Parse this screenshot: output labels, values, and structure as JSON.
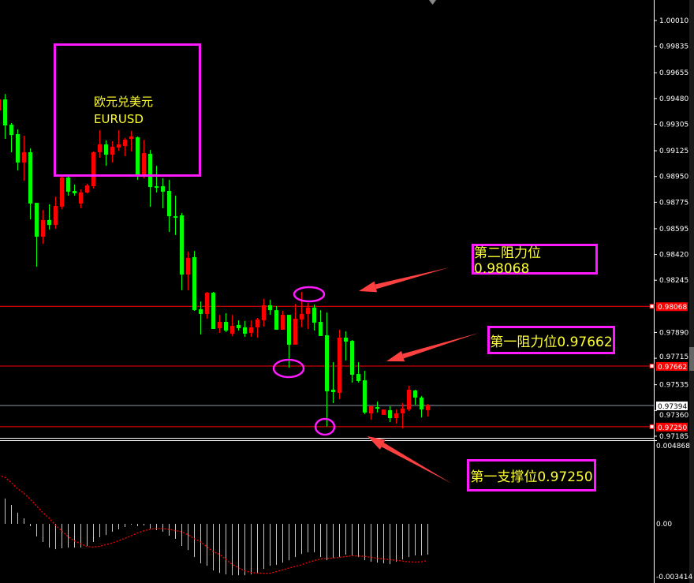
{
  "chart_data": [
    {
      "type": "candlestick",
      "symbol_label": "欧元兑美元",
      "symbol": "EURUSD",
      "colors": {
        "bullish": "#ff0000",
        "bearish": "#00ff00",
        "background": "#000000",
        "annotation": "#ff1aff",
        "annotation_text": "#ffff33"
      },
      "ylim": [
        0.9715,
        1.0006
      ],
      "y_ticks": [
        "1.00010",
        "0.99835",
        "0.99655",
        "0.99480",
        "0.99305",
        "0.99125",
        "0.98950",
        "0.98775",
        "0.98595",
        "0.98420",
        "0.98245",
        "0.97890",
        "0.97715",
        "0.97535",
        "0.97360",
        "0.97185"
      ],
      "current_price": "0.97394",
      "levels": [
        {
          "price": 0.98068,
          "label": "0.98068",
          "color": "#ff0000"
        },
        {
          "price": 0.97662,
          "label": "0.97662",
          "color": "#ff0000"
        },
        {
          "price": 0.9725,
          "label": "0.97250",
          "color": "#ff0000"
        },
        {
          "price": 0.97394,
          "label": "0.97394",
          "color": "#8a96a0"
        }
      ],
      "ohlc": [
        [
          0.99399,
          0.99506,
          0.99388,
          0.99474
        ],
        [
          0.99474,
          0.99511,
          0.99206,
          0.99297
        ],
        [
          0.99302,
          0.99313,
          0.99115,
          0.99232
        ],
        [
          0.99238,
          0.9927,
          0.98991,
          0.99045
        ],
        [
          0.99045,
          0.99227,
          0.98922,
          0.99115
        ],
        [
          0.99115,
          0.99141,
          0.98659,
          0.98766
        ],
        [
          0.98771,
          0.98771,
          0.98337,
          0.98541
        ],
        [
          0.98541,
          0.98723,
          0.98493,
          0.98654
        ],
        [
          0.98654,
          0.98761,
          0.98589,
          0.98621
        ],
        [
          0.98621,
          0.98814,
          0.98595,
          0.9875
        ],
        [
          0.98745,
          0.98959,
          0.98729,
          0.98943
        ],
        [
          0.98943,
          0.98964,
          0.9882,
          0.98847
        ],
        [
          0.98852,
          0.98895,
          0.9882,
          0.98836
        ],
        [
          0.98766,
          0.98863,
          0.98734,
          0.98841
        ],
        [
          0.98841,
          0.989,
          0.98836,
          0.98889
        ],
        [
          0.98884,
          0.9912,
          0.98868,
          0.99115
        ],
        [
          0.99115,
          0.99265,
          0.99077,
          0.99168
        ],
        [
          0.99168,
          0.99195,
          0.99023,
          0.99098
        ],
        [
          0.99098,
          0.9919,
          0.99045,
          0.99152
        ],
        [
          0.99147,
          0.99265,
          0.99125,
          0.99168
        ],
        [
          0.99157,
          0.99211,
          0.99088,
          0.992
        ],
        [
          0.99206,
          0.99259,
          0.9912,
          0.99222
        ],
        [
          0.99216,
          0.99222,
          0.98927,
          0.98959
        ],
        [
          0.98959,
          0.992,
          0.98938,
          0.99109
        ],
        [
          0.99104,
          0.99131,
          0.98745,
          0.98879
        ],
        [
          0.98884,
          0.99023,
          0.98841,
          0.98873
        ],
        [
          0.98884,
          0.98938,
          0.98734,
          0.98847
        ],
        [
          0.98852,
          0.98927,
          0.98573,
          0.9868
        ],
        [
          0.9868,
          0.9882,
          0.98552,
          0.98675
        ],
        [
          0.98686,
          0.98702,
          0.98177,
          0.98284
        ],
        [
          0.98284,
          0.98439,
          0.98177,
          0.98396
        ],
        [
          0.98402,
          0.98444,
          0.98037,
          0.98042
        ],
        [
          0.98048,
          0.98101,
          0.97876,
          0.98016
        ],
        [
          0.98016,
          0.98166,
          0.97984,
          0.9816
        ],
        [
          0.9816,
          0.98166,
          0.97914,
          0.97914
        ],
        [
          0.97919,
          0.9801,
          0.97887,
          0.97962
        ],
        [
          0.97962,
          0.98021,
          0.97892,
          0.97903
        ],
        [
          0.97882,
          0.9801,
          0.97866,
          0.97935
        ],
        [
          0.97941,
          0.97973,
          0.97903,
          0.97919
        ],
        [
          0.97925,
          0.97968,
          0.9786,
          0.97882
        ],
        [
          0.97887,
          0.97973,
          0.9786,
          0.97925
        ],
        [
          0.97925,
          0.97989,
          0.97855,
          0.97978
        ],
        [
          0.97973,
          0.98118,
          0.9793,
          0.98075
        ],
        [
          0.98075,
          0.98112,
          0.9801,
          0.98042
        ],
        [
          0.98042,
          0.98069,
          0.97909,
          0.97909
        ],
        [
          0.97909,
          0.98037,
          0.97909,
          0.9801
        ],
        [
          0.9801,
          0.9801,
          0.97651,
          0.97807
        ],
        [
          0.97807,
          0.98085,
          0.97807,
          0.97984
        ],
        [
          0.97978,
          0.98166,
          0.97925,
          0.98016
        ],
        [
          0.98016,
          0.98091,
          0.97914,
          0.98059
        ],
        [
          0.98059,
          0.9808,
          0.97903,
          0.97957
        ],
        [
          0.97962,
          0.98042,
          0.97866,
          0.97866
        ],
        [
          0.97871,
          0.98026,
          0.97251,
          0.9749
        ],
        [
          0.97501,
          0.97689,
          0.9741,
          0.97485
        ],
        [
          0.9748,
          0.97909,
          0.97437,
          0.97855
        ],
        [
          0.97855,
          0.97898,
          0.977,
          0.97828
        ],
        [
          0.97833,
          0.97839,
          0.97549,
          0.97603
        ],
        [
          0.97608,
          0.97689,
          0.97549,
          0.9756
        ],
        [
          0.97565,
          0.9763,
          0.97335,
          0.97346
        ],
        [
          0.9734,
          0.97389,
          0.97297,
          0.97389
        ],
        [
          0.97383,
          0.97421,
          0.97346,
          0.97373
        ],
        [
          0.9733,
          0.97367,
          0.9733,
          0.97367
        ],
        [
          0.97362,
          0.97389,
          0.97281,
          0.97308
        ],
        [
          0.97308,
          0.97367,
          0.97271,
          0.9734
        ],
        [
          0.9734,
          0.9741,
          0.97238,
          0.97373
        ],
        [
          0.97367,
          0.97528,
          0.97356,
          0.97501
        ],
        [
          0.97496,
          0.97501,
          0.97399,
          0.97448
        ],
        [
          0.97448,
          0.97458,
          0.97313,
          0.97367
        ],
        [
          0.97362,
          0.97405,
          0.97319,
          0.97394
        ]
      ],
      "annotations": [
        {
          "text": "第二阻力位0.98068"
        },
        {
          "text": "第一阻力位0.97662"
        },
        {
          "text": "第一支撑位0.97250"
        }
      ]
    },
    {
      "type": "bar+line",
      "ylim": [
        -0.003414,
        0.004868
      ],
      "y_ticks": [
        "0.004868",
        "0.00",
        "-0.003414"
      ],
      "colors": {
        "histogram": "#c8c8c8",
        "signal": "#ff0000"
      },
      "histogram": [
        null,
        0.0016,
        0.0012,
        0.0007,
        0.00035,
        -0.00015,
        -0.0008,
        -0.00115,
        -0.0015,
        -0.0016,
        -0.00155,
        -0.0015,
        -0.0015,
        -0.0015,
        -0.0014,
        -0.00115,
        -0.00085,
        -0.0007,
        -0.0005,
        -0.00035,
        -0.0002,
        -5e-05,
        -0.00015,
        -0.0001,
        -0.0003,
        -0.0004,
        -0.0005,
        -0.00075,
        -0.00095,
        -0.0014,
        -0.00165,
        -0.0021,
        -0.0025,
        -0.00265,
        -0.00295,
        -0.0031,
        -0.0032,
        -0.00325,
        -0.00325,
        -0.00325,
        -0.0032,
        -0.0031,
        -0.00285,
        -0.00265,
        -0.0026,
        -0.00245,
        -0.0023,
        -0.0021,
        -0.0019,
        -0.0018,
        -0.0018,
        -0.0021,
        -0.0023,
        -0.00215,
        -0.0021,
        -0.00195,
        -0.002,
        -0.0021,
        -0.0023,
        -0.0024,
        -0.00245,
        -0.0025,
        -0.00255,
        -0.0024,
        -0.00225,
        -0.0021,
        -0.002,
        -0.002,
        -0.00195
      ],
      "signal": [
        0.00307,
        0.00295,
        0.00263,
        0.00223,
        0.00195,
        0.00157,
        0.00115,
        0.00073,
        0.00037,
        -7e-05,
        -0.00043,
        -0.0008,
        -0.00107,
        -0.00125,
        -0.00143,
        -0.00147,
        -0.00142,
        -0.00132,
        -0.00122,
        -0.00108,
        -0.00092,
        -0.00077,
        -0.00058,
        -0.00045,
        -0.00035,
        -0.0003,
        -0.0003,
        -0.00035,
        -0.00042,
        -0.0005,
        -0.00068,
        -0.00093,
        -0.00113,
        -0.00143,
        -0.00175,
        -0.00192,
        -0.00223,
        -0.00255,
        -0.00277,
        -0.00297,
        -0.00307,
        -0.00312,
        -0.00313,
        -0.00313,
        -0.00303,
        -0.00292,
        -0.0028,
        -0.0027,
        -0.0026,
        -0.00245,
        -0.00233,
        -0.00223,
        -0.00218,
        -0.00217,
        -0.00212,
        -0.00207,
        -0.00202,
        -0.00203,
        -0.00205,
        -0.00212,
        -0.00217,
        -0.00222,
        -0.00227,
        -0.0023,
        -0.00235,
        -0.0024,
        -0.00242,
        -0.0024,
        -0.00233
      ]
    }
  ]
}
